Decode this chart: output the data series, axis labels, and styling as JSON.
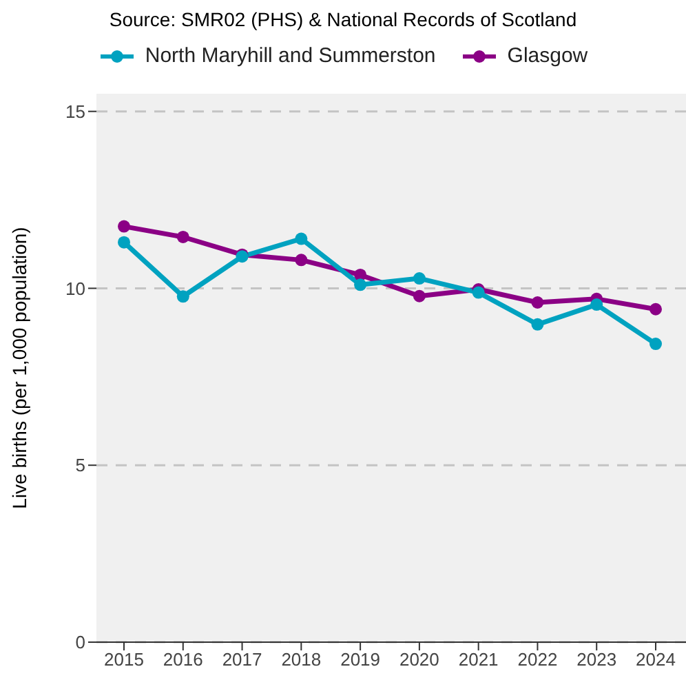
{
  "chart_data": {
    "type": "line",
    "annotations": [
      "Source: SMR02 (PHS) & National Records of Scotland"
    ],
    "ylabel": "Live births (per 1,000 population)",
    "categories": [
      "2015",
      "2016",
      "2017",
      "2018",
      "2019",
      "2020",
      "2021",
      "2022",
      "2023",
      "2024"
    ],
    "series": [
      {
        "name": "North Maryhill and Summerston",
        "color": "#00a2c0",
        "values": [
          11.3,
          9.77,
          10.9,
          11.4,
          10.1,
          10.28,
          9.88,
          8.98,
          9.54,
          8.43
        ]
      },
      {
        "name": "Glasgow",
        "color": "#8b0085",
        "values": [
          11.75,
          11.45,
          10.95,
          10.8,
          10.38,
          9.78,
          9.97,
          9.6,
          9.7,
          9.41
        ]
      }
    ],
    "ylim": [
      0,
      15.5
    ],
    "yticks": [
      0,
      5,
      10,
      15
    ],
    "grid": "y",
    "legend": "top",
    "marker": "circle",
    "line_style": "solid"
  }
}
